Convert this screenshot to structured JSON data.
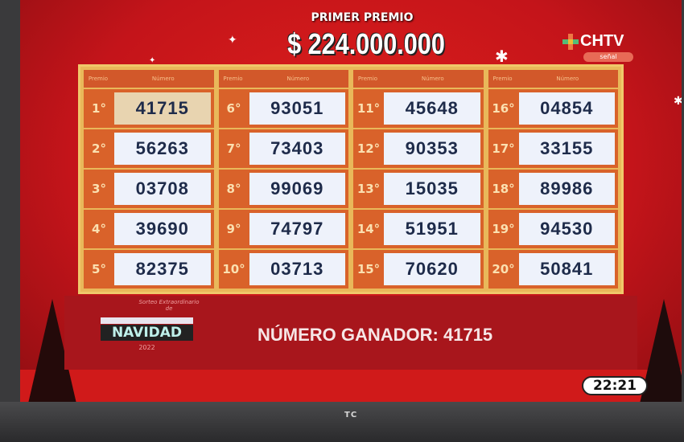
{
  "header": {
    "title": "PRIMER PREMIO",
    "amount": "$ 224.000.000"
  },
  "channel": {
    "logo": "CHTV",
    "badge": "señal"
  },
  "table": {
    "premio_label": "Premio",
    "numero_label": "Número",
    "columns": [
      [
        {
          "ord": "1°",
          "num": "41715",
          "highlight": true
        },
        {
          "ord": "2°",
          "num": "56263"
        },
        {
          "ord": "3°",
          "num": "03708"
        },
        {
          "ord": "4°",
          "num": "39690"
        },
        {
          "ord": "5°",
          "num": "82375"
        }
      ],
      [
        {
          "ord": "6°",
          "num": "93051"
        },
        {
          "ord": "7°",
          "num": "73403"
        },
        {
          "ord": "8°",
          "num": "99069"
        },
        {
          "ord": "9°",
          "num": "74797"
        },
        {
          "ord": "10°",
          "num": "03713"
        }
      ],
      [
        {
          "ord": "11°",
          "num": "45648"
        },
        {
          "ord": "12°",
          "num": "90353"
        },
        {
          "ord": "13°",
          "num": "15035"
        },
        {
          "ord": "14°",
          "num": "51951"
        },
        {
          "ord": "15°",
          "num": "70620"
        }
      ],
      [
        {
          "ord": "16°",
          "num": "04854"
        },
        {
          "ord": "17°",
          "num": "33155"
        },
        {
          "ord": "18°",
          "num": "89986"
        },
        {
          "ord": "19°",
          "num": "94530"
        },
        {
          "ord": "20°",
          "num": "50841"
        }
      ]
    ]
  },
  "banner": {
    "small": "Sorteo Extraordinario de",
    "main": "NAVIDAD",
    "year": "2022",
    "winner": "NÚMERO GANADOR: 41715"
  },
  "clock": "22:21",
  "tv_brand": "TC"
}
